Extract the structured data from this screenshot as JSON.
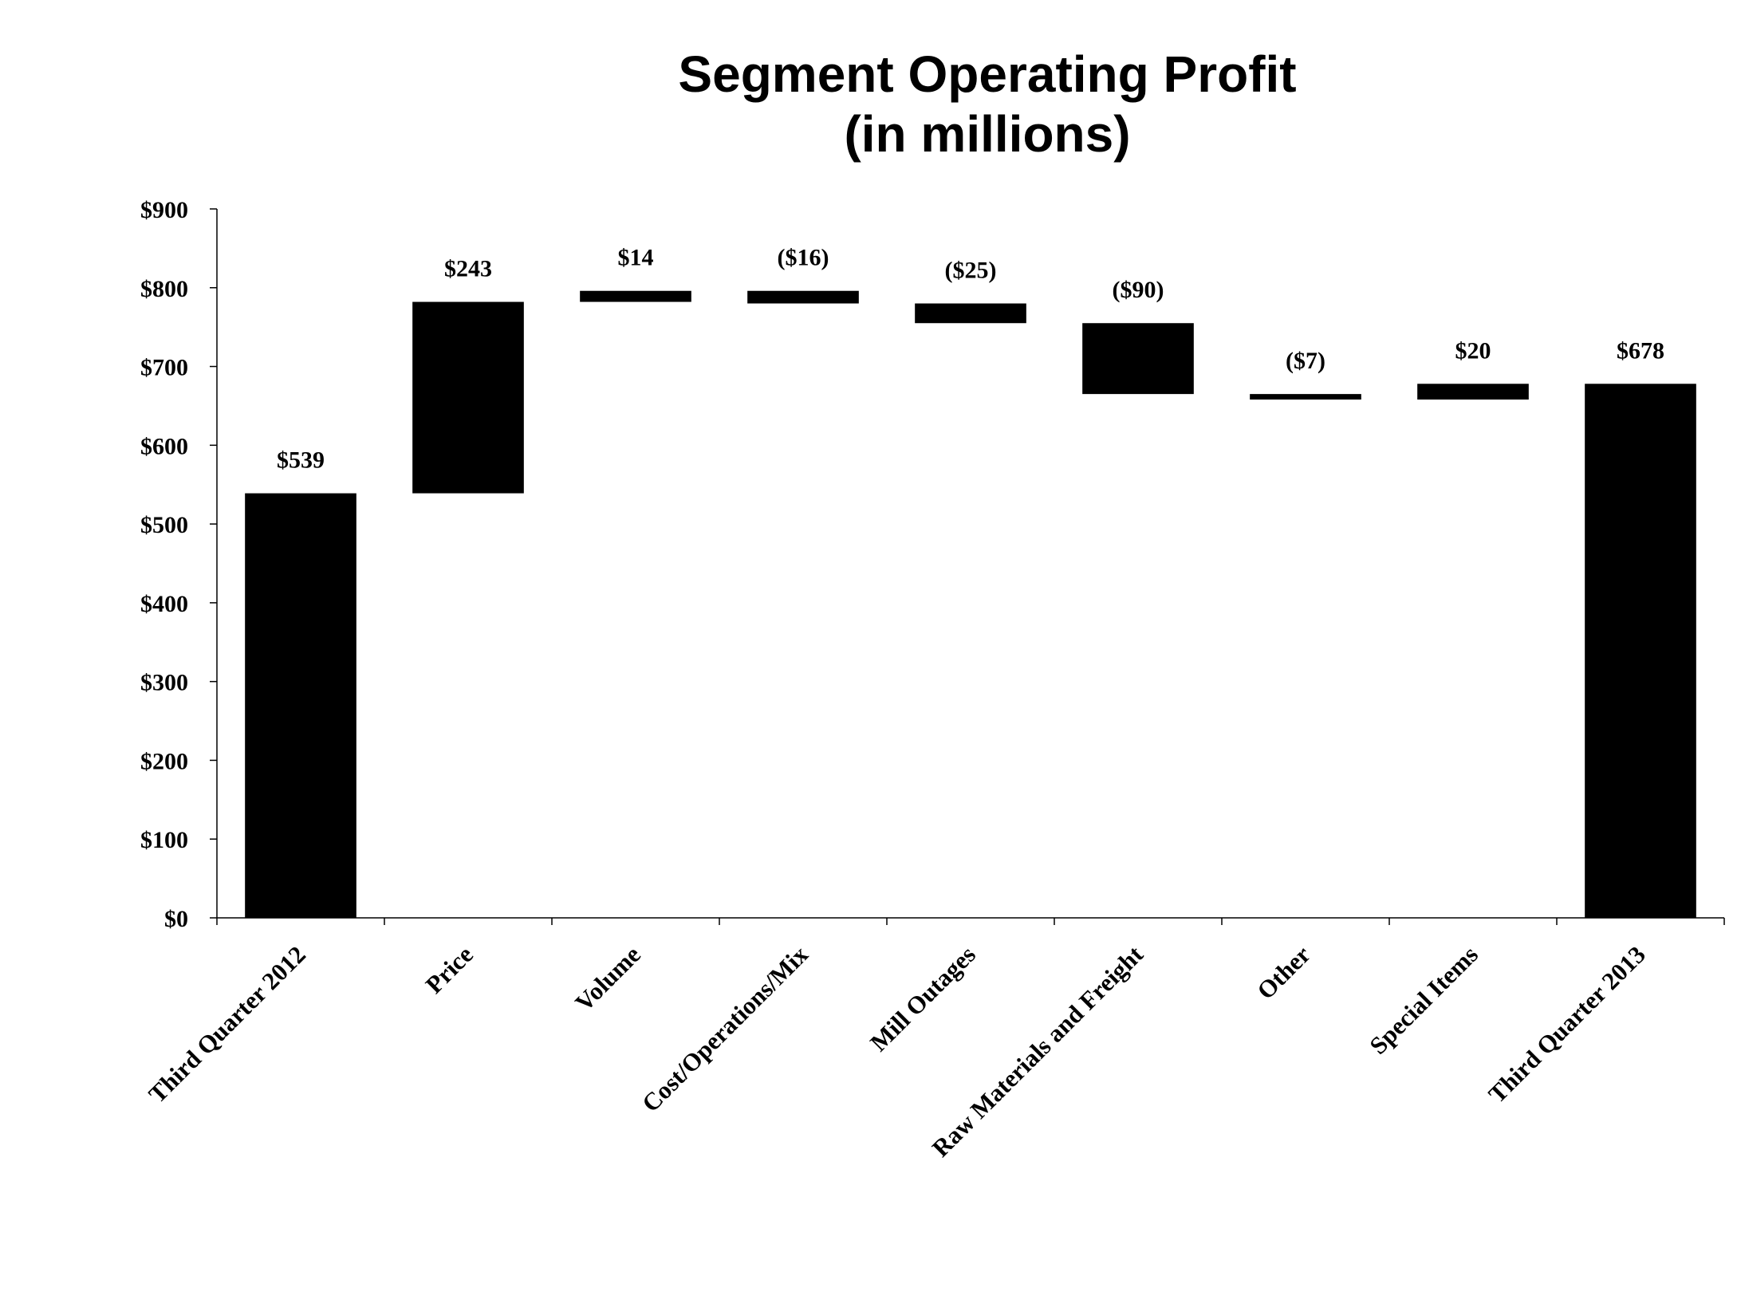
{
  "chart_data": {
    "type": "bar",
    "subtype": "waterfall",
    "title": "Segment Operating Profit",
    "subtitle": "(in millions)",
    "xlabel": "",
    "ylabel": "",
    "ylim": [
      0,
      900
    ],
    "y_ticks": [
      {
        "value": 0,
        "label": "$0"
      },
      {
        "value": 100,
        "label": "$100"
      },
      {
        "value": 200,
        "label": "$200"
      },
      {
        "value": 300,
        "label": "$300"
      },
      {
        "value": 400,
        "label": "$400"
      },
      {
        "value": 500,
        "label": "$500"
      },
      {
        "value": 600,
        "label": "$600"
      },
      {
        "value": 700,
        "label": "$700"
      },
      {
        "value": 800,
        "label": "$800"
      },
      {
        "value": 900,
        "label": "$900"
      }
    ],
    "grid": false,
    "bar_color": "#000000",
    "categories": [
      "Third Quarter 2012",
      "Price",
      "Volume",
      "Cost/Operations/Mix",
      "Mill Outages",
      "Raw Materials and Freight",
      "Other",
      "Special Items",
      "Third Quarter 2013"
    ],
    "values": [
      539,
      243,
      14,
      -16,
      -25,
      -90,
      -7,
      20,
      678
    ],
    "kinds": [
      "total",
      "delta",
      "delta",
      "delta",
      "delta",
      "delta",
      "delta",
      "delta",
      "total"
    ],
    "data_labels": [
      "$539",
      "$243",
      "$14",
      "($16)",
      "($25)",
      "($90)",
      "($7)",
      "$20",
      "$678"
    ]
  }
}
